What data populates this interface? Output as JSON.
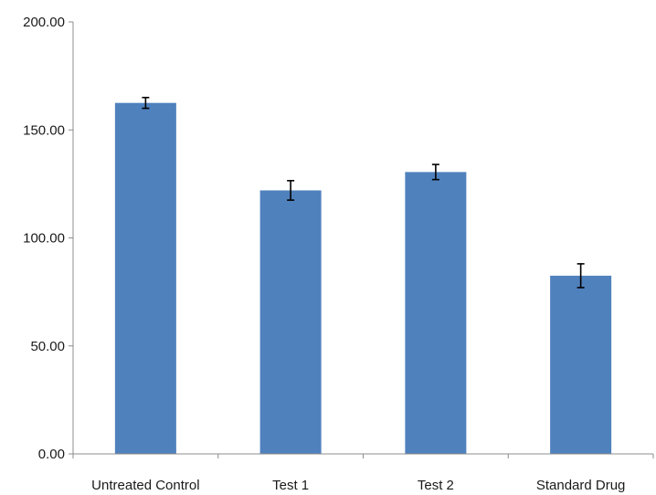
{
  "chart_data": {
    "type": "bar",
    "title": "",
    "xlabel": "",
    "ylabel": "",
    "categories": [
      "Untreated Control",
      "Test 1",
      "Test 2",
      "Standard Drug"
    ],
    "series": [
      {
        "values": [
          162.5,
          122.0,
          130.5,
          82.5
        ],
        "errors": [
          2.5,
          4.5,
          3.5,
          5.5
        ],
        "color": "#4f81bd"
      }
    ],
    "ylim": [
      0,
      200
    ],
    "yticks": [
      "0.00",
      "50.00",
      "100.00",
      "150.00",
      "200.00"
    ],
    "ytick_values": [
      0,
      50,
      100,
      150,
      200
    ],
    "grid": false,
    "legend": "none"
  }
}
